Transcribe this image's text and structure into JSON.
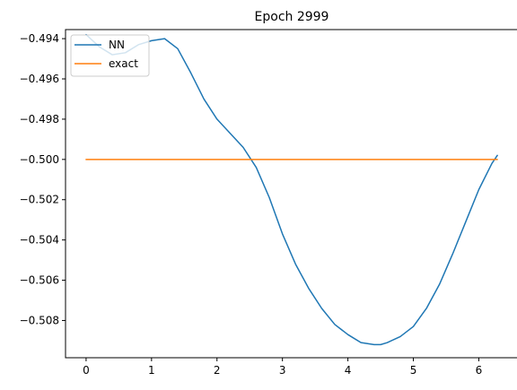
{
  "chart_data": {
    "type": "line",
    "title": "Epoch 2999",
    "xlabel": "",
    "ylabel": "",
    "xlim": [
      -0.3142,
      6.5973
    ],
    "ylim": [
      -0.50985,
      -0.49355
    ],
    "xticks": [
      0,
      1,
      2,
      3,
      4,
      5,
      6
    ],
    "xtick_labels": [
      "0",
      "1",
      "2",
      "3",
      "4",
      "5",
      "6"
    ],
    "yticks": [
      -0.494,
      -0.496,
      -0.498,
      -0.5,
      -0.502,
      -0.504,
      -0.506,
      -0.508
    ],
    "ytick_labels": [
      "−0.494",
      "−0.496",
      "−0.498",
      "−0.500",
      "−0.502",
      "−0.504",
      "−0.506",
      "−0.508"
    ],
    "grid": false,
    "legend": {
      "placement": "top-left",
      "entries": [
        "NN",
        "exact"
      ]
    },
    "series": [
      {
        "name": "NN",
        "color": "#1f77b4",
        "x": [
          0.0,
          0.2,
          0.4,
          0.6,
          0.8,
          1.0,
          1.2,
          1.4,
          1.6,
          1.8,
          2.0,
          2.2,
          2.4,
          2.6,
          2.8,
          3.0,
          3.2,
          3.4,
          3.6,
          3.8,
          4.0,
          4.2,
          4.4,
          4.5,
          4.6,
          4.8,
          5.0,
          5.2,
          5.4,
          5.6,
          5.8,
          6.0,
          6.2,
          6.2832
        ],
        "y": [
          -0.4938,
          -0.4944,
          -0.4948,
          -0.4947,
          -0.4943,
          -0.4941,
          -0.494,
          -0.4945,
          -0.4957,
          -0.497,
          -0.498,
          -0.4987,
          -0.4994,
          -0.5004,
          -0.5019,
          -0.5037,
          -0.5052,
          -0.5064,
          -0.5074,
          -0.5082,
          -0.5087,
          -0.5091,
          -0.5092,
          -0.5092,
          -0.5091,
          -0.5088,
          -0.5083,
          -0.5074,
          -0.5062,
          -0.5047,
          -0.5031,
          -0.5015,
          -0.5002,
          -0.4998
        ]
      },
      {
        "name": "exact",
        "color": "#ff7f0e",
        "x": [
          0.0,
          6.2832
        ],
        "y": [
          -0.5,
          -0.5
        ]
      }
    ]
  }
}
